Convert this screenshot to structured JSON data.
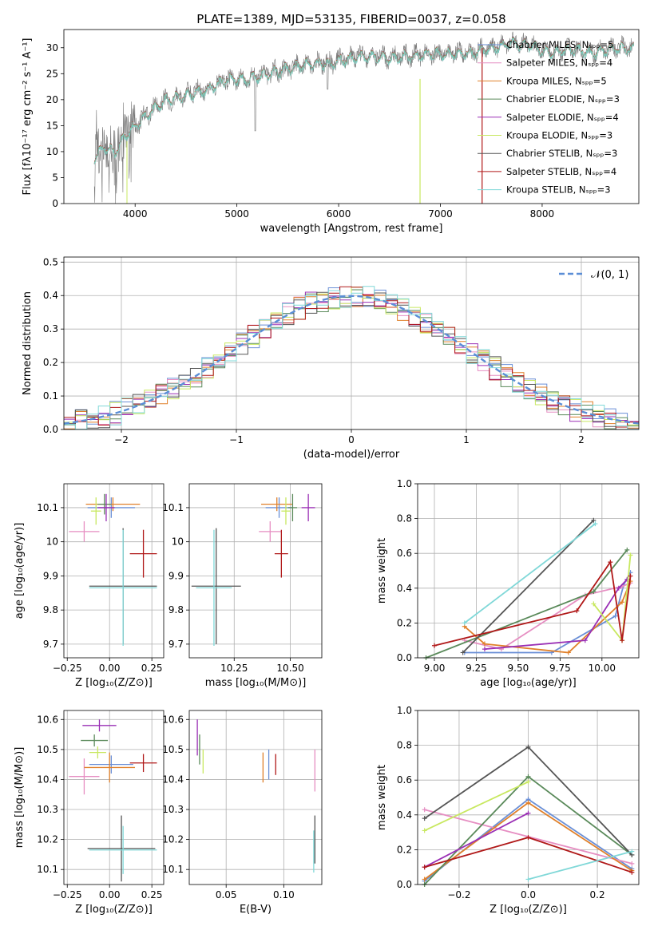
{
  "colors": {
    "Chabrier MILES": "#6a8fd6",
    "Salpeter MILES": "#e68ec2",
    "Kroupa MILES": "#e0802a",
    "Chabrier ELODIE": "#5a8a5a",
    "Salpeter ELODIE": "#9a2fb5",
    "Kroupa ELODIE": "#c8e860",
    "Chabrier STELIB": "#555555",
    "Salpeter STELIB": "#b01818",
    "Kroupa STELIB": "#80d8d8"
  },
  "chart_data": [
    {
      "id": "spectrum",
      "type": "line",
      "title": "PLATE=1389, MJD=53135, FIBERID=0037, z=0.058",
      "xlabel": "wavelength [Angstrom, rest frame]",
      "ylabel": "Flux [fλ10⁻¹⁷ erg cm⁻² s⁻¹ A⁻¹]",
      "xlim": [
        3300,
        8950
      ],
      "ylim": [
        0,
        33.5
      ],
      "xticks": [
        4000,
        5000,
        6000,
        7000,
        8000
      ],
      "yticks": [
        0,
        5,
        10,
        15,
        20,
        25,
        30
      ],
      "legend_position": "right",
      "legend": [
        "Chabrier MILES, Nₛₚₚ=5",
        "Salpeter MILES, Nₛₚₚ=4",
        "Kroupa MILES, Nₛₚₚ=5",
        "Chabrier ELODIE, Nₛₚₚ=3",
        "Salpeter ELODIE, Nₛₚₚ=4",
        "Kroupa ELODIE, Nₛₚₚ=3",
        "Chabrier STELIB, Nₛₚₚ=3",
        "Salpeter STELIB, Nₛₚₚ=4",
        "Kroupa STELIB, Nₛₚₚ=3"
      ],
      "continuum": {
        "x": [
          3600,
          3700,
          3800,
          3900,
          4000,
          4100,
          4200,
          4300,
          4500,
          4700,
          4900,
          5100,
          5300,
          5500,
          5700,
          5900,
          6100,
          6300,
          6500,
          6700,
          6900,
          7100,
          7300,
          7500,
          7700,
          7900,
          8100,
          8300,
          8500,
          8700,
          8900
        ],
        "y": [
          9,
          11,
          10,
          13,
          15,
          17,
          18.5,
          20,
          21,
          22,
          24,
          24,
          25,
          26,
          27,
          27,
          28,
          28.5,
          28,
          28.5,
          29,
          29,
          29,
          30,
          31,
          30.5,
          29,
          30,
          29,
          30,
          30
        ]
      }
    },
    {
      "id": "residuals",
      "type": "line",
      "xlabel": "(data-model)/error",
      "ylabel": "Normed distribution",
      "xlim": [
        -2.5,
        2.5
      ],
      "ylim": [
        0,
        0.515
      ],
      "xticks": [
        -2,
        -1,
        0,
        1,
        2
      ],
      "yticks": [
        0.0,
        0.1,
        0.2,
        0.3,
        0.4,
        0.5
      ],
      "legend": [
        "𝒩(0, 1)"
      ],
      "legend_position": "top-right",
      "bin_width": 0.1
    },
    {
      "id": "age-vs-Z",
      "type": "scatter",
      "xlabel": "Z [log₁₀(Z/Z⊙)]",
      "ylabel": "age  [log₁₀(age/yr)]",
      "xlim": [
        -0.27,
        0.32
      ],
      "ylim": [
        9.66,
        10.17
      ],
      "xticks": [
        -0.25,
        0.0,
        0.25
      ],
      "xticklabels": [
        "−0.25",
        "0.00",
        "0.25"
      ],
      "yticks": [
        9.7,
        9.8,
        9.9,
        10.0,
        10.1
      ],
      "points": [
        {
          "model": "Chabrier MILES",
          "x": 0.01,
          "y": 10.1,
          "xerr": 0.14,
          "yerr": 0.03
        },
        {
          "model": "Salpeter MILES",
          "x": -0.15,
          "y": 10.03,
          "xerr": 0.09,
          "yerr": 0.03
        },
        {
          "model": "Kroupa MILES",
          "x": 0.02,
          "y": 10.11,
          "xerr": 0.16,
          "yerr": 0.02
        },
        {
          "model": "Chabrier ELODIE",
          "x": -0.03,
          "y": 10.11,
          "xerr": 0.04,
          "yerr": 0.03
        },
        {
          "model": "Salpeter ELODIE",
          "x": -0.02,
          "y": 10.1,
          "xerr": 0.05,
          "yerr": 0.04
        },
        {
          "model": "Kroupa ELODIE",
          "x": -0.08,
          "y": 10.09,
          "xerr": 0.03,
          "yerr": 0.04
        },
        {
          "model": "Chabrier STELIB",
          "x": 0.08,
          "y": 9.87,
          "xerr": 0.2,
          "yerr": 0.17
        },
        {
          "model": "Salpeter STELIB",
          "x": 0.2,
          "y": 9.965,
          "xerr": 0.08,
          "yerr": 0.07
        },
        {
          "model": "Kroupa STELIB",
          "x": 0.08,
          "y": 9.865,
          "xerr": 0.2,
          "yerr": 0.17
        }
      ]
    },
    {
      "id": "age-vs-mass",
      "type": "scatter",
      "xlabel": "mass [log₁₀(M/M⊙)]",
      "xlim": [
        10.05,
        10.64
      ],
      "ylim": [
        9.66,
        10.17
      ],
      "xticks": [
        10.25,
        10.5
      ],
      "xticklabels": [
        "10.25",
        "10.50"
      ],
      "yticks": [
        9.7,
        9.8,
        9.9,
        10.0,
        10.1
      ],
      "points": [
        {
          "model": "Chabrier MILES",
          "x": 10.45,
          "y": 10.1,
          "xerr": 0.06,
          "yerr": 0.03
        },
        {
          "model": "Salpeter MILES",
          "x": 10.41,
          "y": 10.03,
          "xerr": 0.05,
          "yerr": 0.03
        },
        {
          "model": "Kroupa MILES",
          "x": 10.44,
          "y": 10.11,
          "xerr": 0.07,
          "yerr": 0.02
        },
        {
          "model": "Chabrier ELODIE",
          "x": 10.51,
          "y": 10.1,
          "xerr": 0.02,
          "yerr": 0.04
        },
        {
          "model": "Salpeter ELODIE",
          "x": 10.58,
          "y": 10.1,
          "xerr": 0.03,
          "yerr": 0.04
        },
        {
          "model": "Kroupa ELODIE",
          "x": 10.48,
          "y": 10.09,
          "xerr": 0.02,
          "yerr": 0.04
        },
        {
          "model": "Chabrier STELIB",
          "x": 10.17,
          "y": 9.87,
          "xerr": 0.11,
          "yerr": 0.17
        },
        {
          "model": "Salpeter STELIB",
          "x": 10.46,
          "y": 9.965,
          "xerr": 0.03,
          "yerr": 0.07
        },
        {
          "model": "Kroupa STELIB",
          "x": 10.16,
          "y": 9.865,
          "xerr": 0.08,
          "yerr": 0.17
        }
      ]
    },
    {
      "id": "weight-vs-age",
      "type": "line",
      "xlabel": "age  [log₁₀(age/yr)]",
      "ylabel": "mass weight",
      "xlim": [
        8.9,
        10.22
      ],
      "ylim": [
        0,
        1.0
      ],
      "xticks": [
        9.0,
        9.25,
        9.5,
        9.75,
        10.0
      ],
      "xticklabels": [
        "9.00",
        "9.25",
        "9.50",
        "9.75",
        "10.00"
      ],
      "yticks": [
        0.0,
        0.2,
        0.4,
        0.6,
        0.8,
        1.0
      ],
      "series": [
        {
          "model": "Chabrier MILES",
          "x": [
            9.18,
            9.7,
            10.08,
            10.13,
            10.17
          ],
          "y": [
            0.03,
            0.03,
            0.24,
            0.42,
            0.49
          ]
        },
        {
          "model": "Salpeter MILES",
          "x": [
            9.18,
            9.4,
            9.9,
            10.12,
            10.17
          ],
          "y": [
            0.1,
            0.05,
            0.36,
            0.41,
            0.43
          ]
        },
        {
          "model": "Kroupa MILES",
          "x": [
            9.18,
            9.3,
            9.8,
            10.12,
            10.17
          ],
          "y": [
            0.18,
            0.08,
            0.03,
            0.32,
            0.44
          ]
        },
        {
          "model": "Chabrier ELODIE",
          "x": [
            8.95,
            9.95,
            10.15
          ],
          "y": [
            0.0,
            0.38,
            0.62
          ]
        },
        {
          "model": "Salpeter ELODIE",
          "x": [
            9.3,
            9.9,
            10.1,
            10.15
          ],
          "y": [
            0.05,
            0.1,
            0.4,
            0.45
          ]
        },
        {
          "model": "Kroupa ELODIE",
          "x": [
            9.95,
            10.12,
            10.17
          ],
          "y": [
            0.31,
            0.1,
            0.59
          ]
        },
        {
          "model": "Chabrier STELIB",
          "x": [
            9.17,
            9.95
          ],
          "y": [
            0.03,
            0.79
          ]
        },
        {
          "model": "Salpeter STELIB",
          "x": [
            9.0,
            9.85,
            10.05,
            10.12,
            10.17
          ],
          "y": [
            0.07,
            0.27,
            0.55,
            0.1,
            0.47
          ]
        },
        {
          "model": "Kroupa STELIB",
          "x": [
            9.18,
            9.96
          ],
          "y": [
            0.2,
            0.77
          ]
        }
      ]
    },
    {
      "id": "mass-vs-Z",
      "type": "scatter",
      "xlabel": "Z [log₁₀(Z/Z⊙)]",
      "ylabel": "mass [log₁₀(M/M⊙)]",
      "xlim": [
        -0.27,
        0.32
      ],
      "ylim": [
        10.05,
        10.63
      ],
      "xticks": [
        -0.25,
        0.0,
        0.25
      ],
      "xticklabels": [
        "−0.25",
        "0.00",
        "0.25"
      ],
      "yticks": [
        10.1,
        10.2,
        10.3,
        10.4,
        10.5,
        10.6
      ],
      "points": [
        {
          "model": "Chabrier MILES",
          "x": 0.01,
          "y": 10.45,
          "xerr": 0.13,
          "yerr": 0.03
        },
        {
          "model": "Salpeter MILES",
          "x": -0.15,
          "y": 10.41,
          "xerr": 0.09,
          "yerr": 0.06
        },
        {
          "model": "Kroupa MILES",
          "x": 0.0,
          "y": 10.44,
          "xerr": 0.15,
          "yerr": 0.05
        },
        {
          "model": "Chabrier ELODIE",
          "x": -0.09,
          "y": 10.53,
          "xerr": 0.08,
          "yerr": 0.02
        },
        {
          "model": "Salpeter ELODIE",
          "x": -0.06,
          "y": 10.58,
          "xerr": 0.1,
          "yerr": 0.02
        },
        {
          "model": "Kroupa ELODIE",
          "x": -0.07,
          "y": 10.49,
          "xerr": 0.05,
          "yerr": 0.02
        },
        {
          "model": "Chabrier STELIB",
          "x": 0.07,
          "y": 10.17,
          "xerr": 0.2,
          "yerr": 0.11
        },
        {
          "model": "Salpeter STELIB",
          "x": 0.2,
          "y": 10.455,
          "xerr": 0.08,
          "yerr": 0.03
        },
        {
          "model": "Kroupa STELIB",
          "x": 0.08,
          "y": 10.165,
          "xerr": 0.2,
          "yerr": 0.08
        }
      ]
    },
    {
      "id": "mass-vs-ebv",
      "type": "scatter",
      "xlabel": "E(B-V)",
      "xlim": [
        0.018,
        0.133
      ],
      "ylim": [
        10.05,
        10.63
      ],
      "xticks": [
        0.05,
        0.1
      ],
      "xticklabels": [
        "0.05",
        "0.10"
      ],
      "yticks": [
        10.1,
        10.2,
        10.3,
        10.4,
        10.5,
        10.6
      ],
      "points": [
        {
          "model": "Chabrier MILES",
          "x": 0.087,
          "y": 10.45,
          "xerr": 0,
          "yerr": 0.05
        },
        {
          "model": "Salpeter MILES",
          "x": 0.127,
          "y": 10.43,
          "xerr": 0,
          "yerr": 0.07
        },
        {
          "model": "Kroupa MILES",
          "x": 0.082,
          "y": 10.44,
          "xerr": 0,
          "yerr": 0.05
        },
        {
          "model": "Chabrier ELODIE",
          "x": 0.027,
          "y": 10.5,
          "xerr": 0,
          "yerr": 0.05
        },
        {
          "model": "Salpeter ELODIE",
          "x": 0.025,
          "y": 10.54,
          "xerr": 0,
          "yerr": 0.06
        },
        {
          "model": "Kroupa ELODIE",
          "x": 0.03,
          "y": 10.46,
          "xerr": 0,
          "yerr": 0.04
        },
        {
          "model": "Chabrier STELIB",
          "x": 0.127,
          "y": 10.2,
          "xerr": 0,
          "yerr": 0.08
        },
        {
          "model": "Salpeter STELIB",
          "x": 0.093,
          "y": 10.45,
          "xerr": 0,
          "yerr": 0.035
        },
        {
          "model": "Kroupa STELIB",
          "x": 0.126,
          "y": 10.16,
          "xerr": 0,
          "yerr": 0.07
        }
      ]
    },
    {
      "id": "weight-vs-Z",
      "type": "line",
      "xlabel": "Z [log₁₀(Z/Z⊙)]",
      "ylabel": "mass weight",
      "xlim": [
        -0.32,
        0.32
      ],
      "ylim": [
        0,
        1.0
      ],
      "xticks": [
        -0.2,
        0.0,
        0.2
      ],
      "xticklabels": [
        "−0.2",
        "0.0",
        "0.2"
      ],
      "yticks": [
        0.0,
        0.2,
        0.4,
        0.6,
        0.8,
        1.0
      ],
      "series": [
        {
          "model": "Chabrier MILES",
          "x": [
            -0.3,
            0.0,
            0.3
          ],
          "y": [
            0.02,
            0.49,
            0.09
          ]
        },
        {
          "model": "Salpeter MILES",
          "x": [
            -0.3,
            0.3
          ],
          "y": [
            0.43,
            0.12
          ]
        },
        {
          "model": "Kroupa MILES",
          "x": [
            -0.3,
            0.0,
            0.3
          ],
          "y": [
            0.03,
            0.47,
            0.08
          ]
        },
        {
          "model": "Chabrier ELODIE",
          "x": [
            -0.3,
            0.0,
            0.3
          ],
          "y": [
            0.0,
            0.62,
            0.17
          ]
        },
        {
          "model": "Salpeter ELODIE",
          "x": [
            -0.3,
            0.0
          ],
          "y": [
            0.1,
            0.41
          ]
        },
        {
          "model": "Kroupa ELODIE",
          "x": [
            -0.3,
            0.0
          ],
          "y": [
            0.31,
            0.59
          ]
        },
        {
          "model": "Chabrier STELIB",
          "x": [
            -0.3,
            0.0,
            0.3
          ],
          "y": [
            0.38,
            0.79,
            0.17
          ]
        },
        {
          "model": "Salpeter STELIB",
          "x": [
            -0.3,
            0.0,
            0.3
          ],
          "y": [
            0.1,
            0.27,
            0.07
          ]
        },
        {
          "model": "Kroupa STELIB",
          "x": [
            0.0,
            0.3
          ],
          "y": [
            0.03,
            0.19
          ]
        }
      ]
    }
  ]
}
